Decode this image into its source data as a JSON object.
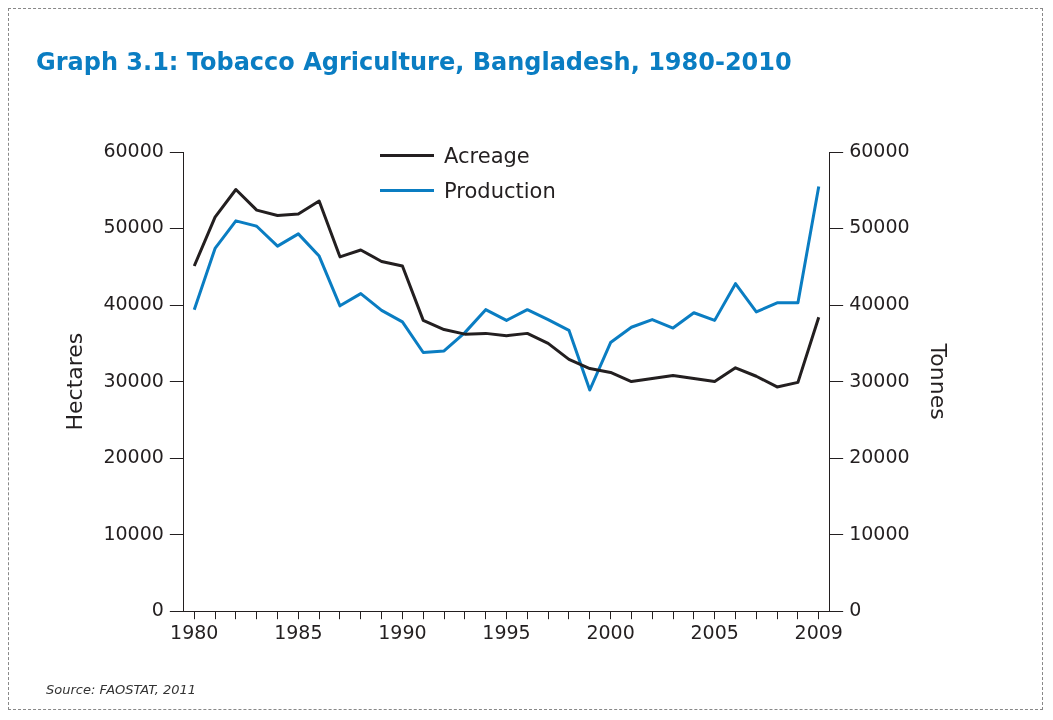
{
  "chart_data": {
    "type": "line",
    "title": "Graph 3.1: Tobacco Agriculture, Bangladesh, 1980-2010",
    "categories": [
      "1980",
      null,
      null,
      null,
      null,
      "1985",
      null,
      null,
      null,
      null,
      "1990",
      null,
      null,
      null,
      null,
      "1995",
      null,
      null,
      null,
      null,
      "2000",
      null,
      null,
      null,
      null,
      "2005",
      null,
      null,
      null,
      null,
      "2009"
    ],
    "series": [
      {
        "name": "Acreage",
        "color": "#231f20",
        "values": [
          45100,
          51500,
          55100,
          52400,
          51700,
          51900,
          53600,
          46300,
          47200,
          45700,
          45100,
          38000,
          36800,
          36200,
          36300,
          36000,
          36300,
          35000,
          32900,
          31700,
          31200,
          30000,
          30400,
          30800,
          30400,
          30000,
          31800,
          30700,
          29300,
          29900,
          38400
        ]
      },
      {
        "name": "Production",
        "color": "#0a7dc2",
        "axis": "y2",
        "values": [
          39400,
          47400,
          51000,
          50300,
          47700,
          49300,
          46400,
          39900,
          41500,
          39300,
          37800,
          33800,
          34000,
          36400,
          39400,
          38000,
          39400,
          38100,
          36700,
          28900,
          35100,
          37100,
          38100,
          37000,
          39000,
          38000,
          42800,
          39100,
          40300,
          40300,
          55500
        ]
      }
    ],
    "ylabel": "Hectares",
    "y2label": "Tonnes",
    "ylim": [
      0,
      60000
    ],
    "yticks": [
      0,
      10000,
      20000,
      30000,
      40000,
      50000,
      60000
    ],
    "y2lim": [
      0,
      60000
    ],
    "y2ticks": [
      0,
      10000,
      20000,
      30000,
      40000,
      50000,
      60000
    ],
    "legend": "top",
    "grid": false,
    "marker": "none",
    "line_style": "solid",
    "annotations": [
      "Source: FAOSTAT, 2011"
    ]
  }
}
